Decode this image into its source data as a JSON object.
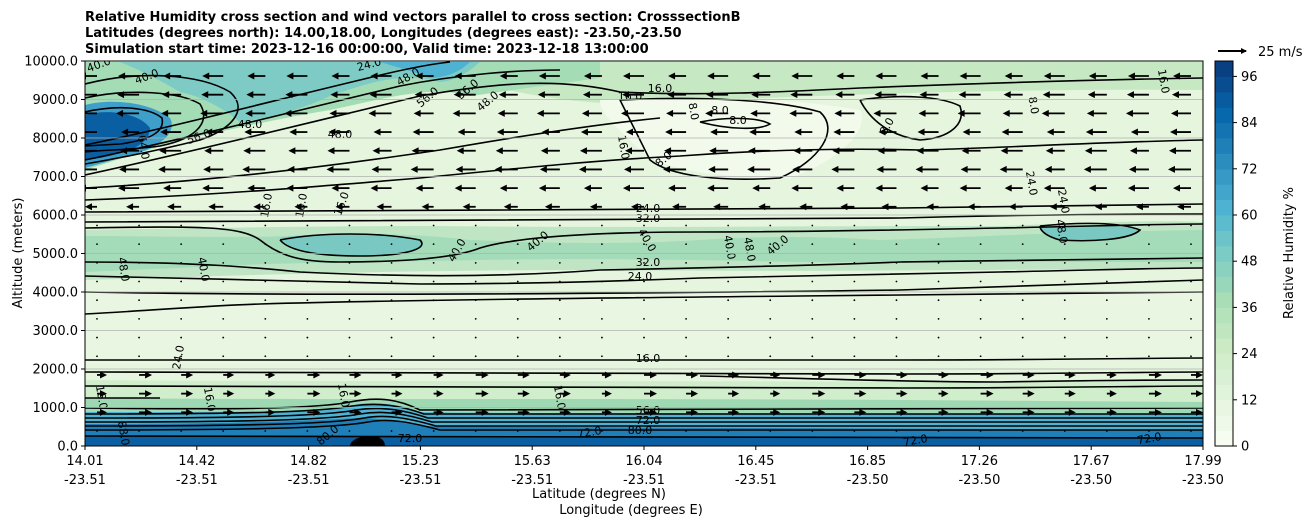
{
  "title_lines": [
    "Relative Humidity cross section and wind vectors parallel to cross section: CrosssectionB",
    "Latitudes (degrees north): 14.00,18.00, Longitudes (degrees east): -23.50,-23.50",
    "Simulation start time: 2023-12-16 00:00:00, Valid time: 2023-12-18 13:00:00"
  ],
  "quiver_key_label": "25 m/s",
  "colors": {
    "colormap": [
      "#f7fcf0",
      "#e0f3db",
      "#ccebc5",
      "#a8ddb5",
      "#7bccc4",
      "#4eb3d3",
      "#2b8cbe",
      "#0868ac",
      "#084081"
    ],
    "contour": "#000000",
    "grid": "#b0b0b0"
  },
  "chart_data": {
    "type": "contour",
    "x_ticks": [
      {
        "lat": "14.01",
        "lon": "-23.51"
      },
      {
        "lat": "14.42",
        "lon": "-23.51"
      },
      {
        "lat": "14.82",
        "lon": "-23.51"
      },
      {
        "lat": "15.23",
        "lon": "-23.51"
      },
      {
        "lat": "15.63",
        "lon": "-23.51"
      },
      {
        "lat": "16.04",
        "lon": "-23.51"
      },
      {
        "lat": "16.45",
        "lon": "-23.51"
      },
      {
        "lat": "16.85",
        "lon": "-23.50"
      },
      {
        "lat": "17.26",
        "lon": "-23.50"
      },
      {
        "lat": "17.67",
        "lon": "-23.50"
      },
      {
        "lat": "17.99",
        "lon": "-23.50"
      }
    ],
    "xlabel_lines": [
      "Latitude (degrees N)",
      "Longitude (degrees E)"
    ],
    "ylabel": "Altitude (meters)",
    "y_ticks": [
      "0.0",
      "1000.0",
      "2000.0",
      "3000.0",
      "4000.0",
      "5000.0",
      "6000.0",
      "7000.0",
      "8000.0",
      "9000.0",
      "10000.0"
    ],
    "ylim": [
      0,
      10000
    ],
    "grid": "horizontal",
    "colorbar": {
      "label": "Relative Humidity %",
      "ticks": [
        "0",
        "12",
        "24",
        "36",
        "48",
        "60",
        "72",
        "84",
        "96"
      ],
      "range": [
        0,
        100
      ],
      "levels": 25
    },
    "contour_labels": [
      "8.0",
      "16.0",
      "24.0",
      "32.0",
      "40.0",
      "48.0",
      "56.0",
      "64.0",
      "72.0",
      "80.0",
      "88.0"
    ],
    "wind_vectors": "parallel to cross section; leftward above ~6000 m, rightward below ~1500 m"
  }
}
